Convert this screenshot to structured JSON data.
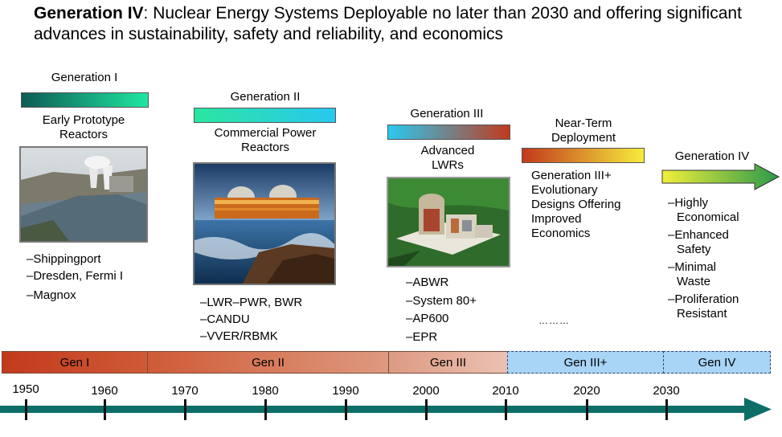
{
  "title": {
    "bold": "Generation IV",
    "rest": ": Nuclear Energy Systems Deployable no later than 2030 and offering significant advances in sustainability, safety and reliability, and economics"
  },
  "stages": [
    {
      "name": "Generation I",
      "caption": [
        "Early Prototype",
        "Reactors"
      ],
      "items": [
        "–Shippingport",
        "–Dresden, Fermi I",
        "–Magnox"
      ]
    },
    {
      "name": "Generation II",
      "caption": [
        "Commercial Power",
        "Reactors"
      ],
      "items": [
        "–LWR–PWR, BWR",
        "–CANDU",
        "–VVER/RBMK"
      ]
    },
    {
      "name": "Generation III",
      "caption": [
        "Advanced",
        "LWRs"
      ],
      "items": [
        "–ABWR",
        "–System 80+",
        "–AP600",
        "–EPR"
      ]
    },
    {
      "name": [
        "Near-Term",
        "Deployment"
      ],
      "caption": [
        "Generation III+",
        "Evolutionary",
        "Designs Offering",
        "Improved",
        "Economics"
      ],
      "dots": "………"
    },
    {
      "name": "Generation IV",
      "items": [
        [
          "–Highly",
          "Economical"
        ],
        [
          "–Enhanced",
          "Safety"
        ],
        [
          "–Minimal",
          "Waste"
        ],
        [
          "–Proliferation",
          "Resistant"
        ]
      ]
    }
  ],
  "timeline": {
    "bands": [
      "Gen I",
      "Gen II",
      "Gen III",
      "Gen III+",
      "Gen IV"
    ],
    "years": [
      "1950",
      "1960",
      "1970",
      "1980",
      "1990",
      "2000",
      "2010",
      "2020",
      "2030"
    ]
  },
  "colors": {
    "teal": "#0d6e68",
    "gen1": "#c2391c",
    "gen3plus": "#a8d4f5"
  }
}
